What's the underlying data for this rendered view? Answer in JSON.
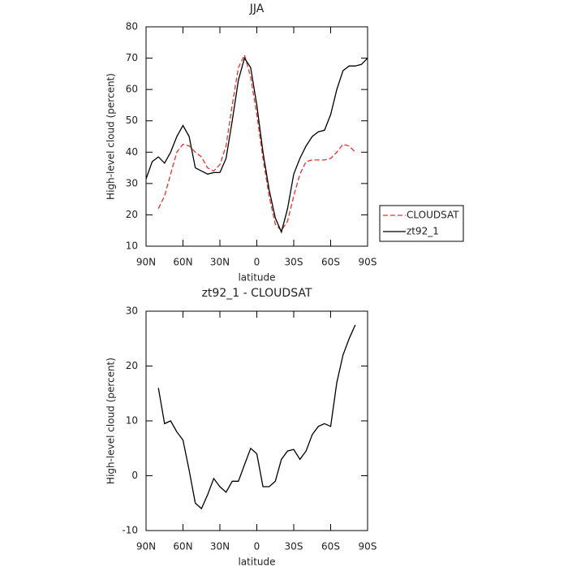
{
  "chart_data": [
    {
      "type": "line",
      "title": "JJA",
      "x_label": "latitude",
      "y_label": "High-level cloud (percent)",
      "x": [
        90,
        85,
        80,
        75,
        70,
        65,
        60,
        55,
        50,
        45,
        40,
        35,
        30,
        25,
        20,
        15,
        10,
        5,
        0,
        -5,
        -10,
        -15,
        -20,
        -25,
        -30,
        -35,
        -40,
        -45,
        -50,
        -55,
        -60,
        -65,
        -70,
        -75,
        -80,
        -85,
        -90
      ],
      "series": [
        {
          "name": "CLOUDSAT",
          "color": "#e8312c",
          "dash": true,
          "values": [
            null,
            null,
            22,
            26,
            33,
            40,
            42.5,
            42,
            40,
            38.5,
            35,
            34,
            36,
            42,
            55,
            67,
            71,
            64,
            52,
            38,
            26,
            17,
            15,
            18,
            26,
            33,
            37,
            37.5,
            37.5,
            37.5,
            38,
            40,
            42.5,
            42,
            40,
            null,
            null
          ]
        },
        {
          "name": "zt92_1",
          "color": "#000000",
          "dash": false,
          "values": [
            31.5,
            37,
            38.5,
            36.5,
            40,
            45,
            48.5,
            45,
            35,
            34,
            33,
            33.5,
            33.5,
            38,
            50,
            63,
            70,
            67,
            55,
            40,
            28,
            19,
            14.5,
            22,
            33,
            38,
            42,
            45,
            46.5,
            47,
            52,
            60,
            66,
            67.5,
            67.5,
            68,
            70
          ]
        }
      ],
      "xlim": [
        90,
        -90
      ],
      "xticks": [
        {
          "value": 90,
          "label": "90N"
        },
        {
          "value": 60,
          "label": "60N"
        },
        {
          "value": 30,
          "label": "30N"
        },
        0,
        {
          "value": -30,
          "label": "30S"
        },
        {
          "value": -60,
          "label": "60S"
        },
        {
          "value": -90,
          "label": "90S"
        }
      ],
      "ylim": [
        10,
        80
      ],
      "yticks": [
        10,
        20,
        30,
        40,
        50,
        60,
        70,
        80
      ],
      "legend": "right"
    },
    {
      "type": "line",
      "title": "zt92_1 - CLOUDSAT",
      "x_label": "latitude",
      "y_label": "High-level cloud (percent)",
      "x": [
        80,
        75,
        70,
        65,
        60,
        55,
        50,
        45,
        40,
        35,
        30,
        25,
        20,
        15,
        10,
        5,
        0,
        -5,
        -10,
        -15,
        -20,
        -25,
        -30,
        -35,
        -40,
        -45,
        -50,
        -55,
        -60,
        -65,
        -70,
        -75,
        -80
      ],
      "series": [
        {
          "color": "#000000",
          "dash": false,
          "values": [
            16,
            9.5,
            10,
            8,
            6.5,
            1,
            -5,
            -6,
            -3.5,
            -0.5,
            -2,
            -3,
            -1,
            -1,
            2,
            5,
            4,
            -2,
            -2,
            -1,
            3,
            4.5,
            4.8,
            3,
            4.5,
            7.5,
            9,
            9.5,
            9,
            17,
            22,
            25,
            27.5
          ]
        }
      ],
      "xlim": [
        90,
        -90
      ],
      "xticks": [
        {
          "value": 90,
          "label": "90N"
        },
        {
          "value": 60,
          "label": "60N"
        },
        {
          "value": 30,
          "label": "30N"
        },
        0,
        {
          "value": -30,
          "label": "30S"
        },
        {
          "value": -60,
          "label": "60S"
        },
        {
          "value": -90,
          "label": "90S"
        }
      ],
      "ylim": [
        -10,
        30
      ],
      "yticks": [
        -10,
        0,
        10,
        20,
        30
      ]
    }
  ]
}
